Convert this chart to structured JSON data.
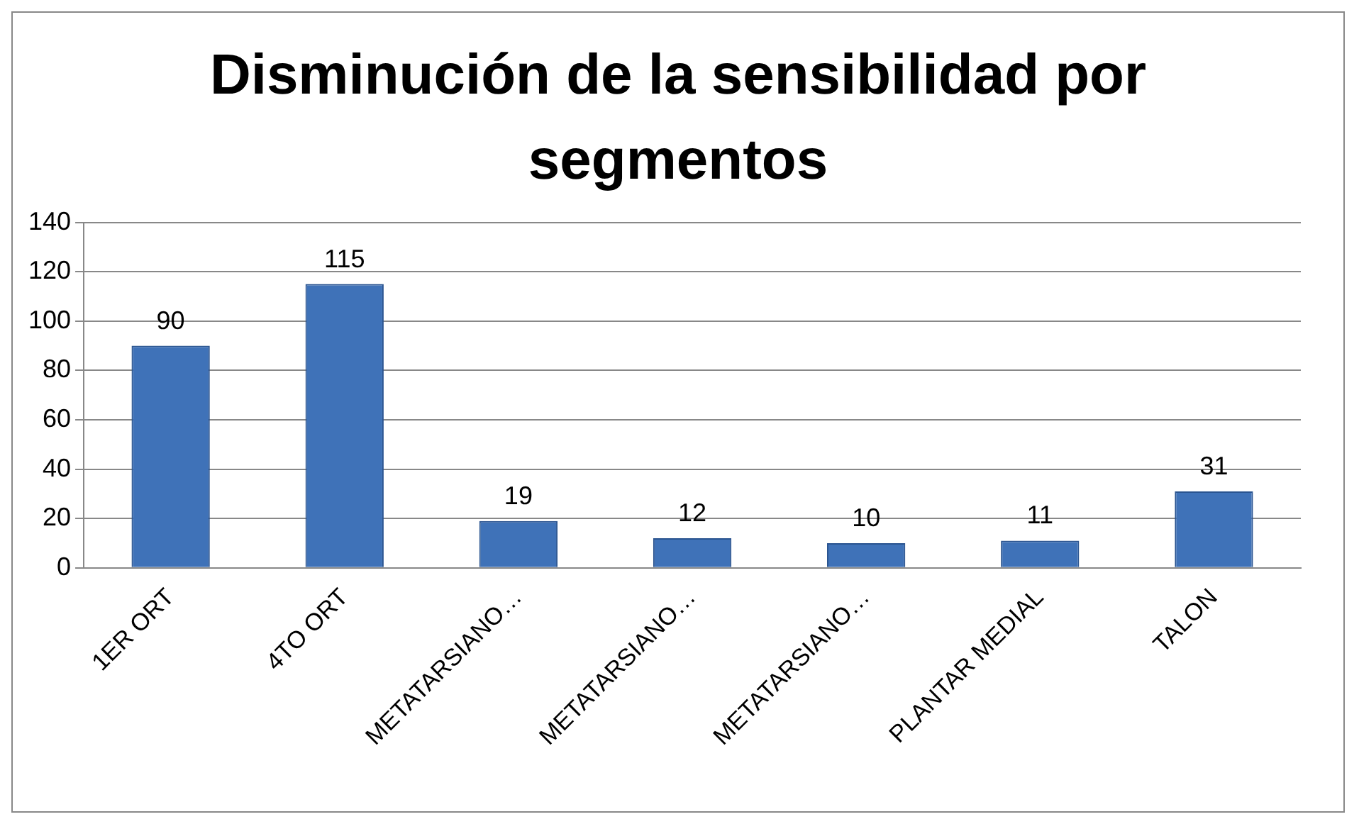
{
  "chart_data": {
    "type": "bar",
    "title": "Disminución de la sensibilidad por segmentos",
    "categories": [
      "1ER ORT",
      "4TO ORT",
      "METATARSIANO…",
      "METATARSIANO…",
      "METATARSIANO…",
      "PLANTAR MEDIAL",
      "TALON"
    ],
    "values": [
      90,
      115,
      19,
      12,
      10,
      11,
      31
    ],
    "color": "#3f72b8",
    "ylim": [
      0,
      140
    ],
    "yticks": [
      0,
      20,
      40,
      60,
      80,
      100,
      120,
      140
    ],
    "grid": "y",
    "data_labels": true,
    "legend": false
  }
}
